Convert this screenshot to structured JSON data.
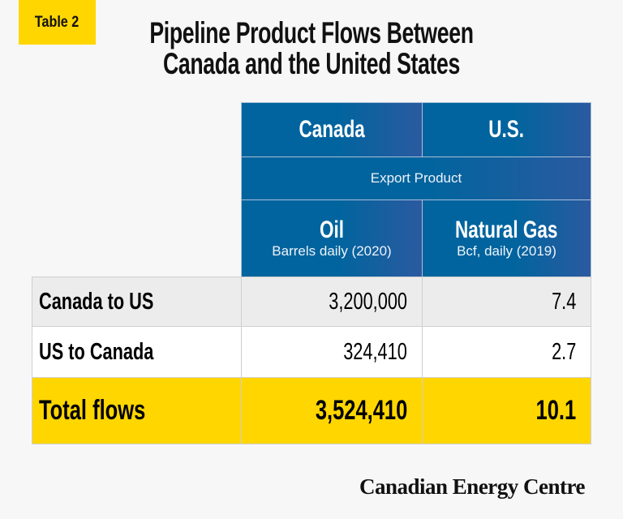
{
  "badge": "Table 2",
  "title": [
    "Pipeline Product Flows Between",
    "Canada and the United States"
  ],
  "colors": {
    "header_blue": "#02649e",
    "accent_yellow": "#ffd600",
    "row_gray": "#ececec"
  },
  "chart_data": {
    "type": "table",
    "title": "Pipeline Product Flows Between Canada and the United States",
    "columns": [
      "Canada",
      "U.S."
    ],
    "group_header": "Export Product",
    "products": [
      {
        "name": "Oil",
        "unit": "Barrels daily (2020)"
      },
      {
        "name": "Natural Gas",
        "unit": "Bcf, daily (2019)"
      }
    ],
    "rows": [
      {
        "label": "Canada to US",
        "values": [
          "3,200,000",
          "7.4"
        ]
      },
      {
        "label": "US to Canada",
        "values": [
          "324,410",
          "2.7"
        ]
      },
      {
        "label": "Total flows",
        "values": [
          "3,524,410",
          "10.1"
        ]
      }
    ]
  },
  "logo": "Canadian Energy Centre"
}
